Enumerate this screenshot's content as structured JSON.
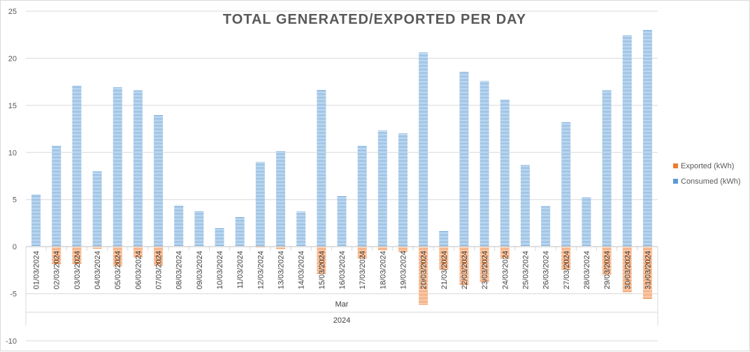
{
  "chart_data": {
    "type": "bar",
    "title": "TOTAL GENERATED/EXPORTED PER DAY",
    "categories": [
      "01/03/2024",
      "02/03/2024",
      "03/03/2024",
      "04/03/2024",
      "05/03/2024",
      "06/03/2024",
      "07/03/2024",
      "08/03/2024",
      "09/03/2024",
      "10/03/2024",
      "11/03/2024",
      "12/03/2024",
      "13/03/2024",
      "14/03/2024",
      "15/03/2024",
      "16/03/2024",
      "17/03/2024",
      "18/03/2024",
      "19/03/2024",
      "20/03/2024",
      "21/03/2024",
      "22/03/2024",
      "23/03/2024",
      "24/03/2024",
      "25/03/2024",
      "26/03/2024",
      "27/03/2024",
      "28/03/2024",
      "29/03/2024",
      "30/03/2024",
      "31/03/2024"
    ],
    "group_labels": {
      "month": "Mar",
      "year": "2024"
    },
    "series": [
      {
        "name": "Exported (kWh)",
        "color": "#ed7d31",
        "values": [
          0,
          -1.9,
          -1.9,
          -0.2,
          -2.1,
          -1.2,
          -2.0,
          0,
          0,
          0,
          0,
          -0.1,
          -0.3,
          0,
          -2.9,
          0,
          -1.3,
          -0.4,
          -0.6,
          -6.2,
          -2.5,
          -4.1,
          -3.8,
          -1.3,
          0,
          0,
          -2.5,
          0,
          -3.0,
          -4.9,
          -5.6
        ]
      },
      {
        "name": "Consumed (kWh)",
        "color": "#5b9bd5",
        "values": [
          5.5,
          10.7,
          17.1,
          8.0,
          16.9,
          16.6,
          14.0,
          4.4,
          3.8,
          2.0,
          3.2,
          9.0,
          10.1,
          3.7,
          16.7,
          5.4,
          10.7,
          12.3,
          12.0,
          20.6,
          1.7,
          18.6,
          17.6,
          15.6,
          8.7,
          4.3,
          13.2,
          5.2,
          16.6,
          22.4,
          23.0
        ]
      }
    ],
    "ylim": [
      -10,
      25
    ],
    "yticks": [
      -10,
      -5,
      0,
      5,
      10,
      15,
      20,
      25
    ],
    "grid": true,
    "legend_position": "right"
  }
}
